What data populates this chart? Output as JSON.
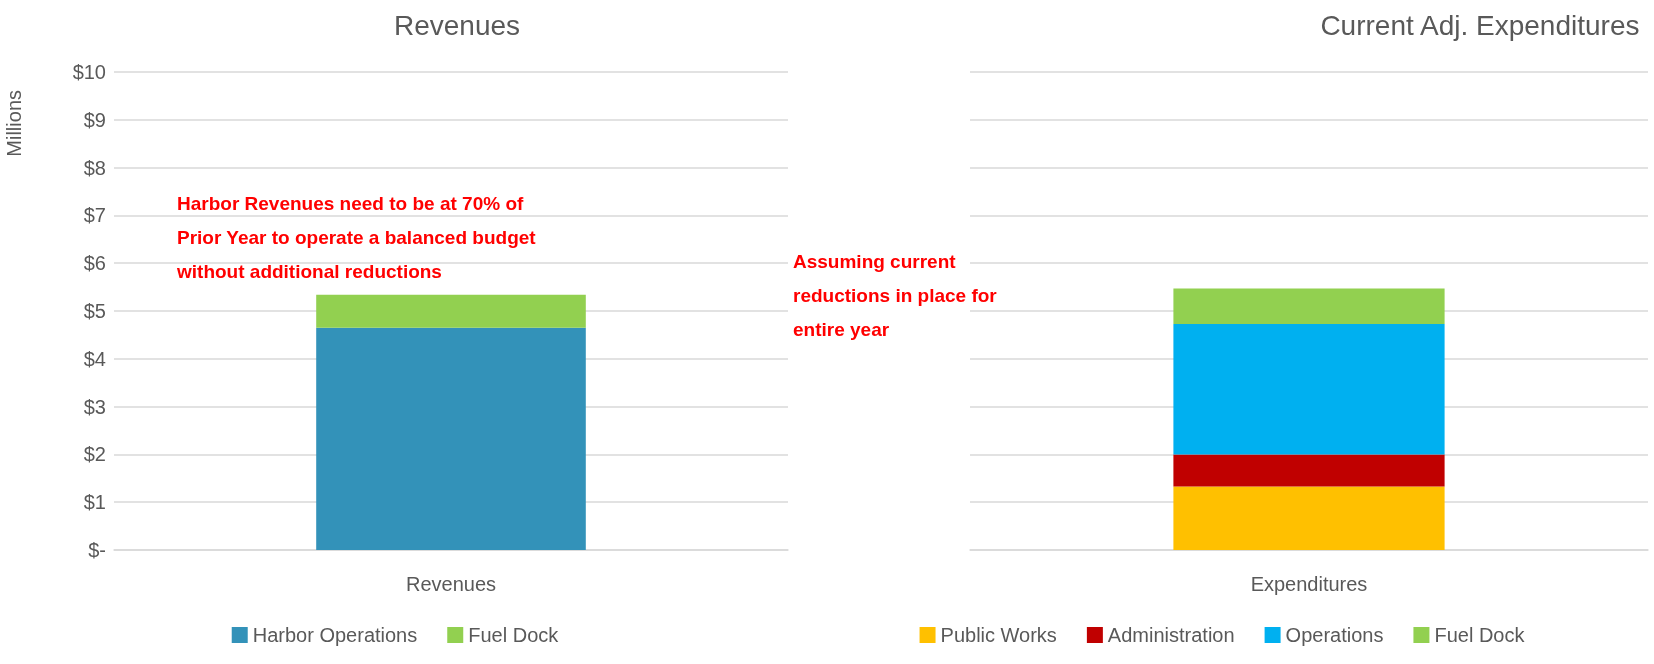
{
  "chart_data": [
    {
      "type": "bar",
      "title": "Revenues",
      "ylabel": "Millions",
      "categories": [
        "Revenues"
      ],
      "stacked": true,
      "series": [
        {
          "name": "Harbor Operations",
          "color": "#3392b9",
          "values": [
            4.65
          ]
        },
        {
          "name": "Fuel Dock",
          "color": "#92d050",
          "values": [
            0.69
          ]
        }
      ],
      "ylim": [
        0,
        10
      ],
      "yticks": [
        {
          "value": 0,
          "label": "$-"
        },
        {
          "value": 1,
          "label": "$1"
        },
        {
          "value": 2,
          "label": "$2"
        },
        {
          "value": 3,
          "label": "$3"
        },
        {
          "value": 4,
          "label": "$4"
        },
        {
          "value": 5,
          "label": "$5"
        },
        {
          "value": 6,
          "label": "$6"
        },
        {
          "value": 7,
          "label": "$7"
        },
        {
          "value": 8,
          "label": "$8"
        },
        {
          "value": 9,
          "label": "$9"
        },
        {
          "value": 10,
          "label": "$10"
        }
      ],
      "grid": "y",
      "legend": "bottom",
      "annotations": [
        "Harbor Revenues need to be at 70% of Prior Year to operate a balanced budget without additional reductions"
      ]
    },
    {
      "type": "bar",
      "title": "Current Adj. Expenditures",
      "categories": [
        "Expenditures"
      ],
      "stacked": true,
      "series": [
        {
          "name": "Public Works",
          "color": "#ffc000",
          "values": [
            1.33
          ]
        },
        {
          "name": "Administration",
          "color": "#c00000",
          "values": [
            0.67
          ]
        },
        {
          "name": "Operations",
          "color": "#00b0f0",
          "values": [
            2.73
          ]
        },
        {
          "name": "Fuel Dock",
          "color": "#92d050",
          "values": [
            0.74
          ]
        }
      ],
      "ylim": [
        0,
        10
      ],
      "yticks": [
        {
          "value": 0,
          "label": null
        },
        {
          "value": 1,
          "label": null
        },
        {
          "value": 2,
          "label": null
        },
        {
          "value": 3,
          "label": null
        },
        {
          "value": 4,
          "label": null
        },
        {
          "value": 5,
          "label": null
        },
        {
          "value": 6,
          "label": null
        },
        {
          "value": 7,
          "label": null
        },
        {
          "value": 8,
          "label": null
        },
        {
          "value": 9,
          "label": null
        },
        {
          "value": 10,
          "label": null
        }
      ],
      "tick_labels": "x",
      "grid": "y",
      "legend": "bottom",
      "annotations": [
        "Assuming current reductions in place for entire year"
      ]
    }
  ]
}
